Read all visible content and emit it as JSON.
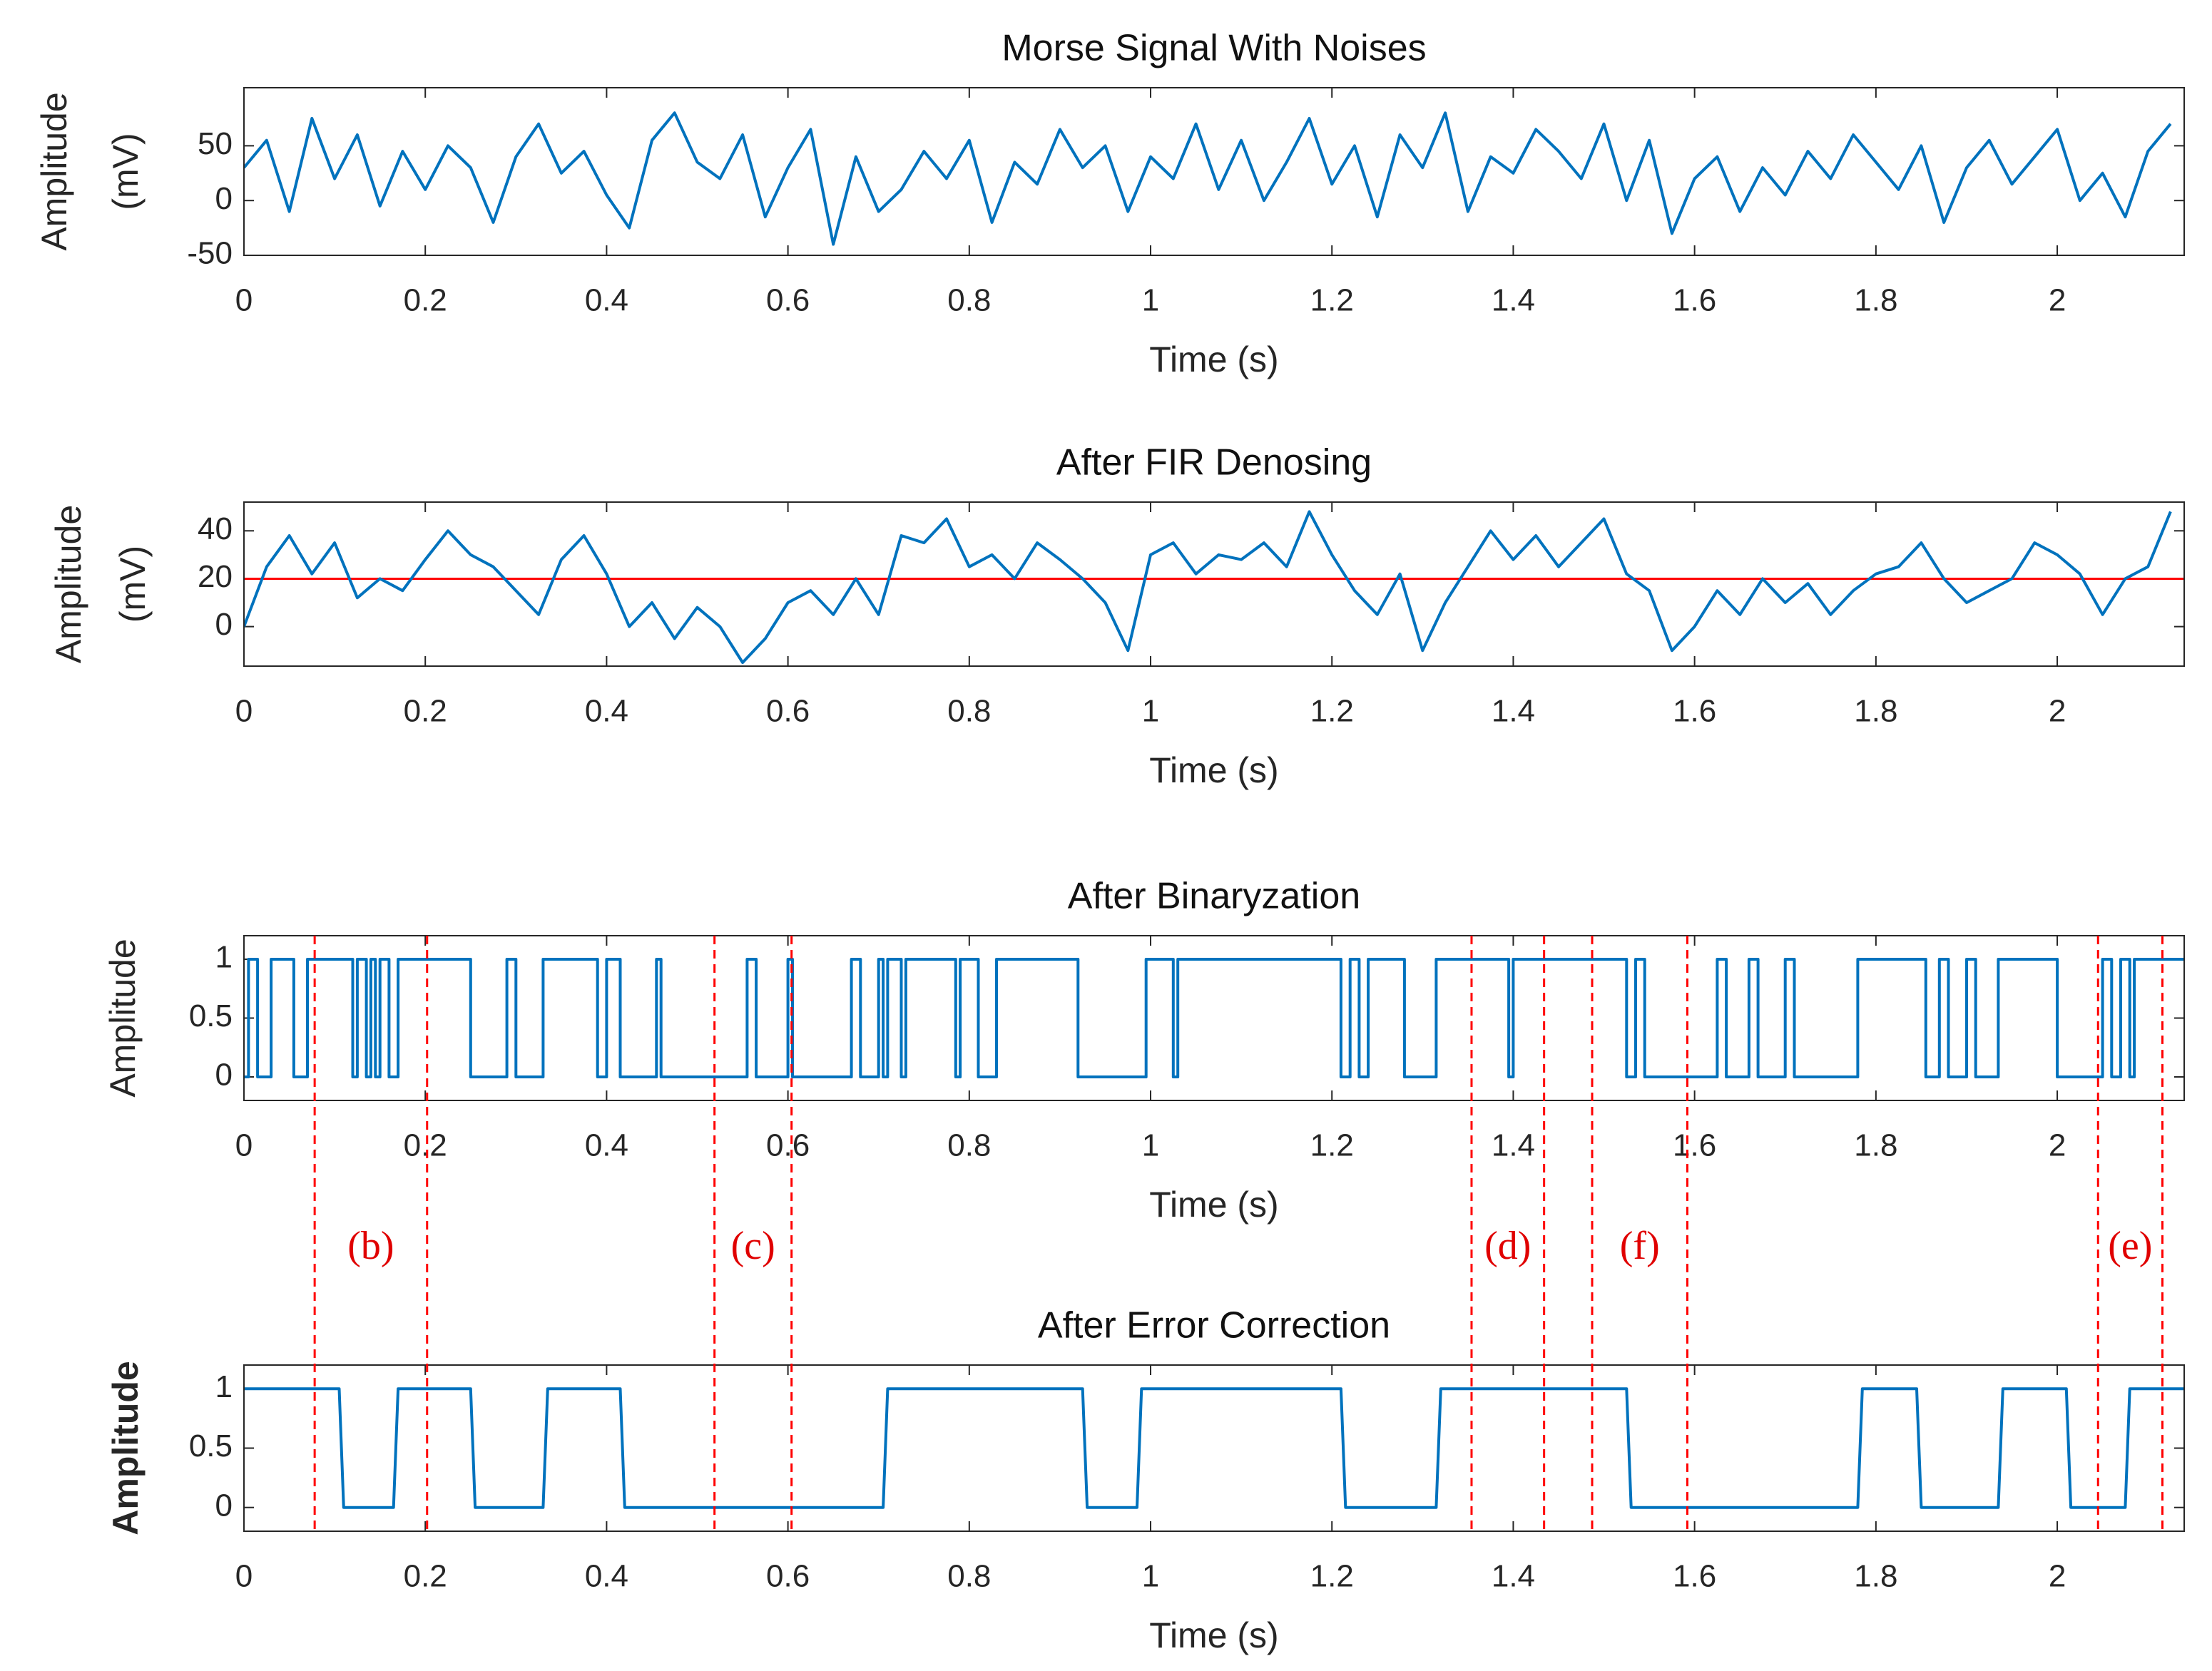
{
  "chart_data": [
    {
      "type": "line",
      "title": "Morse Signal With Noises",
      "xlabel": "Time (s)",
      "ylabel": [
        "Amplitude",
        "(mV)"
      ],
      "color": "#0072bd",
      "xlim": [
        0,
        2.14
      ],
      "xticks": [
        0,
        0.2,
        0.4,
        0.6,
        0.8,
        1,
        1.2,
        1.4,
        1.6,
        1.8,
        2
      ],
      "ylim": [
        -50,
        103
      ],
      "yticks": [
        -50,
        0,
        50
      ],
      "x": [
        0,
        0.025,
        0.05,
        0.075,
        0.1,
        0.125,
        0.15,
        0.175,
        0.2,
        0.225,
        0.25,
        0.275,
        0.3,
        0.325,
        0.35,
        0.375,
        0.4,
        0.425,
        0.45,
        0.475,
        0.5,
        0.525,
        0.55,
        0.575,
        0.6,
        0.625,
        0.65,
        0.675,
        0.7,
        0.725,
        0.75,
        0.775,
        0.8,
        0.825,
        0.85,
        0.875,
        0.9,
        0.925,
        0.95,
        0.975,
        1,
        1.025,
        1.05,
        1.075,
        1.1,
        1.125,
        1.15,
        1.175,
        1.2,
        1.225,
        1.25,
        1.275,
        1.3,
        1.325,
        1.35,
        1.375,
        1.4,
        1.425,
        1.45,
        1.475,
        1.5,
        1.525,
        1.55,
        1.575,
        1.6,
        1.625,
        1.65,
        1.675,
        1.7,
        1.725,
        1.75,
        1.775,
        1.8,
        1.825,
        1.85,
        1.875,
        1.9,
        1.925,
        1.95,
        1.975,
        2,
        2.025,
        2.05,
        2.075,
        2.1,
        2.125
      ],
      "values": [
        30,
        55,
        -10,
        75,
        20,
        60,
        -5,
        45,
        10,
        50,
        30,
        -20,
        40,
        70,
        25,
        45,
        5,
        -25,
        55,
        80,
        35,
        20,
        60,
        -15,
        30,
        65,
        -40,
        40,
        -10,
        10,
        45,
        20,
        55,
        -20,
        35,
        15,
        65,
        30,
        50,
        -10,
        40,
        20,
        70,
        10,
        55,
        0,
        35,
        75,
        15,
        50,
        -15,
        60,
        30,
        80,
        -10,
        40,
        25,
        65,
        45,
        20,
        70,
        0,
        55,
        -30,
        20,
        40,
        -10,
        30,
        5,
        45,
        20,
        60,
        35,
        10,
        50,
        -20,
        30,
        55,
        15,
        40,
        65,
        0,
        25,
        -15,
        45,
        70
      ]
    },
    {
      "type": "line",
      "title": "After FIR Denosing",
      "xlabel": "Time (s)",
      "ylabel": [
        "Amplitude",
        "(mV)"
      ],
      "color": "#0072bd",
      "xlim": [
        0,
        2.14
      ],
      "xticks": [
        0,
        0.2,
        0.4,
        0.6,
        0.8,
        1,
        1.2,
        1.4,
        1.6,
        1.8,
        2
      ],
      "ylim": [
        -16.5,
        52
      ],
      "yticks": [
        0,
        20,
        40
      ],
      "threshold": 20,
      "threshold_color": "#ff0000",
      "x": [
        0,
        0.025,
        0.05,
        0.075,
        0.1,
        0.125,
        0.15,
        0.175,
        0.2,
        0.225,
        0.25,
        0.275,
        0.3,
        0.325,
        0.35,
        0.375,
        0.4,
        0.425,
        0.45,
        0.475,
        0.5,
        0.525,
        0.55,
        0.575,
        0.6,
        0.625,
        0.65,
        0.675,
        0.7,
        0.725,
        0.75,
        0.775,
        0.8,
        0.825,
        0.85,
        0.875,
        0.9,
        0.925,
        0.95,
        0.975,
        1,
        1.025,
        1.05,
        1.075,
        1.1,
        1.125,
        1.15,
        1.175,
        1.2,
        1.225,
        1.25,
        1.275,
        1.3,
        1.325,
        1.35,
        1.375,
        1.4,
        1.425,
        1.45,
        1.475,
        1.5,
        1.525,
        1.55,
        1.575,
        1.6,
        1.625,
        1.65,
        1.675,
        1.7,
        1.725,
        1.75,
        1.775,
        1.8,
        1.825,
        1.85,
        1.875,
        1.9,
        1.925,
        1.95,
        1.975,
        2,
        2.025,
        2.05,
        2.075,
        2.1,
        2.125
      ],
      "values": [
        0,
        25,
        38,
        22,
        35,
        12,
        20,
        15,
        28,
        40,
        30,
        25,
        15,
        5,
        28,
        38,
        22,
        0,
        10,
        -5,
        8,
        0,
        -15,
        -5,
        10,
        15,
        5,
        20,
        5,
        38,
        35,
        45,
        25,
        30,
        20,
        35,
        28,
        20,
        10,
        -10,
        30,
        35,
        22,
        30,
        28,
        35,
        25,
        48,
        30,
        15,
        5,
        22,
        -10,
        10,
        25,
        40,
        28,
        38,
        25,
        35,
        45,
        22,
        15,
        -10,
        0,
        15,
        5,
        20,
        10,
        18,
        5,
        15,
        22,
        25,
        35,
        20,
        10,
        15,
        20,
        35,
        30,
        22,
        5,
        20,
        25,
        48
      ]
    },
    {
      "type": "line",
      "title": "After Binaryzation",
      "xlabel": "Time (s)",
      "ylabel": [
        "Amplitude"
      ],
      "color": "#0072bd",
      "xlim": [
        0,
        2.14
      ],
      "xticks": [
        0,
        0.2,
        0.4,
        0.6,
        0.8,
        1,
        1.2,
        1.4,
        1.6,
        1.8,
        2
      ],
      "ylim": [
        -0.2,
        1.2
      ],
      "yticks": [
        0,
        0.5,
        1
      ],
      "x": [
        0,
        0.005,
        0.005,
        0.015,
        0.015,
        0.03,
        0.03,
        0.055,
        0.055,
        0.07,
        0.07,
        0.12,
        0.12,
        0.125,
        0.125,
        0.135,
        0.135,
        0.14,
        0.14,
        0.145,
        0.145,
        0.15,
        0.15,
        0.16,
        0.16,
        0.17,
        0.17,
        0.25,
        0.25,
        0.29,
        0.29,
        0.3,
        0.3,
        0.33,
        0.33,
        0.39,
        0.39,
        0.4,
        0.4,
        0.415,
        0.415,
        0.455,
        0.455,
        0.46,
        0.46,
        0.555,
        0.555,
        0.565,
        0.565,
        0.6,
        0.6,
        0.605,
        0.605,
        0.67,
        0.67,
        0.68,
        0.68,
        0.7,
        0.7,
        0.705,
        0.705,
        0.71,
        0.71,
        0.725,
        0.725,
        0.73,
        0.73,
        0.785,
        0.785,
        0.79,
        0.79,
        0.81,
        0.81,
        0.83,
        0.83,
        0.92,
        0.92,
        0.995,
        0.995,
        1.025,
        1.025,
        1.03,
        1.03,
        1.21,
        1.21,
        1.22,
        1.22,
        1.23,
        1.23,
        1.24,
        1.24,
        1.28,
        1.28,
        1.315,
        1.315,
        1.395,
        1.395,
        1.4,
        1.4,
        1.525,
        1.525,
        1.535,
        1.535,
        1.545,
        1.545,
        1.625,
        1.625,
        1.635,
        1.635,
        1.66,
        1.66,
        1.67,
        1.67,
        1.7,
        1.7,
        1.71,
        1.71,
        1.78,
        1.78,
        1.855,
        1.855,
        1.87,
        1.87,
        1.88,
        1.88,
        1.9,
        1.9,
        1.91,
        1.91,
        1.935,
        1.935,
        2,
        2,
        2.05,
        2.05,
        2.06,
        2.06,
        2.07,
        2.07,
        2.08,
        2.08,
        2.085,
        2.085,
        2.14
      ],
      "values": [
        0,
        0,
        1,
        1,
        0,
        0,
        1,
        1,
        0,
        0,
        1,
        1,
        0,
        0,
        1,
        1,
        0,
        0,
        1,
        1,
        0,
        0,
        1,
        1,
        0,
        0,
        1,
        1,
        0,
        0,
        1,
        1,
        0,
        0,
        1,
        1,
        0,
        0,
        1,
        1,
        0,
        0,
        1,
        1,
        0,
        0,
        1,
        1,
        0,
        0,
        1,
        1,
        0,
        0,
        1,
        1,
        0,
        0,
        1,
        1,
        0,
        0,
        1,
        1,
        0,
        0,
        1,
        1,
        0,
        0,
        1,
        1,
        0,
        0,
        1,
        1,
        0,
        0,
        1,
        1,
        0,
        0,
        1,
        1,
        0,
        0,
        1,
        1,
        0,
        0,
        1,
        1,
        0,
        0,
        1,
        1,
        0,
        0,
        1,
        1,
        0,
        0,
        1,
        1,
        0,
        0,
        1,
        1,
        0,
        0,
        1,
        1,
        0,
        0,
        1,
        1,
        0,
        0,
        1,
        1,
        0,
        0,
        1,
        1,
        0,
        0,
        1,
        1,
        0,
        0,
        1,
        1,
        0,
        0,
        1,
        1,
        0,
        0,
        1,
        1,
        0,
        0,
        1,
        1
      ]
    },
    {
      "type": "line",
      "title": "After Error Correction",
      "xlabel": "Time (s)",
      "ylabel": [
        "Amplitude"
      ],
      "color": "#0072bd",
      "xlim": [
        0,
        2.14
      ],
      "xticks": [
        0,
        0.2,
        0.4,
        0.6,
        0.8,
        1,
        1.2,
        1.4,
        1.6,
        1.8,
        2
      ],
      "ylim": [
        -0.2,
        1.2
      ],
      "yticks": [
        0,
        0.5,
        1
      ],
      "x": [
        0,
        0.105,
        0.11,
        0.165,
        0.17,
        0.25,
        0.255,
        0.33,
        0.335,
        0.415,
        0.42,
        0.705,
        0.71,
        0.925,
        0.93,
        0.985,
        0.99,
        1.21,
        1.215,
        1.315,
        1.32,
        1.525,
        1.53,
        1.78,
        1.785,
        1.845,
        1.85,
        1.935,
        1.94,
        2.01,
        2.015,
        2.075,
        2.08,
        2.14
      ],
      "values": [
        1,
        1,
        0,
        0,
        1,
        1,
        0,
        0,
        1,
        1,
        0,
        0,
        1,
        1,
        0,
        0,
        1,
        1,
        0,
        0,
        1,
        1,
        0,
        0,
        1,
        1,
        0,
        0,
        1,
        1,
        0,
        0,
        1,
        1
      ],
      "region_color": "#ff0000",
      "regions": [
        {
          "label": "(b)",
          "x": [
            0.078,
            0.202
          ]
        },
        {
          "label": "(c)",
          "x": [
            0.519,
            0.604
          ]
        },
        {
          "label": "(d)",
          "x": [
            1.354,
            1.434
          ]
        },
        {
          "label": "(f)",
          "x": [
            1.487,
            1.592
          ]
        },
        {
          "label": "(e)",
          "x": [
            2.045,
            2.116
          ]
        }
      ]
    }
  ]
}
